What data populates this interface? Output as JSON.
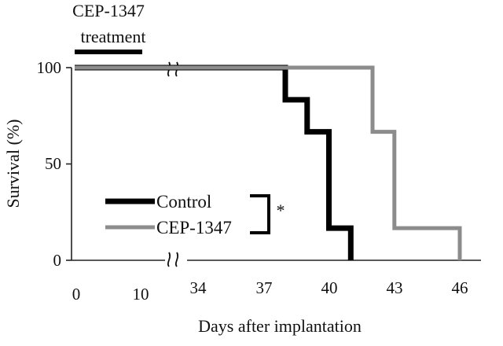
{
  "chart_data": {
    "type": "line",
    "title": "",
    "xlabel": "Days after implantation",
    "ylabel": "Survival (%)",
    "ylim": [
      0,
      100
    ],
    "y_ticks": [
      0,
      50,
      100
    ],
    "x_ticks": [
      0,
      10,
      34,
      37,
      40,
      43,
      46
    ],
    "x_break": "between 10 and 34",
    "grid": false,
    "legend_position": "lower-left",
    "series": [
      {
        "name": "Control",
        "style": "step",
        "color": "#000000",
        "x": [
          0,
          38,
          39,
          40,
          41
        ],
        "y": [
          100,
          83.3,
          66.7,
          16.7,
          0
        ]
      },
      {
        "name": "CEP-1347",
        "style": "step",
        "color": "#8c8c8c",
        "x": [
          0,
          42,
          43,
          46
        ],
        "y": [
          100,
          66.7,
          16.7,
          0
        ]
      }
    ],
    "treatment_bar": {
      "label_line1": "CEP-1347",
      "label_line2": "treatment",
      "x_start": 0,
      "x_end": 10
    },
    "significance": {
      "label": "*",
      "between": [
        "Control",
        "CEP-1347"
      ]
    }
  }
}
